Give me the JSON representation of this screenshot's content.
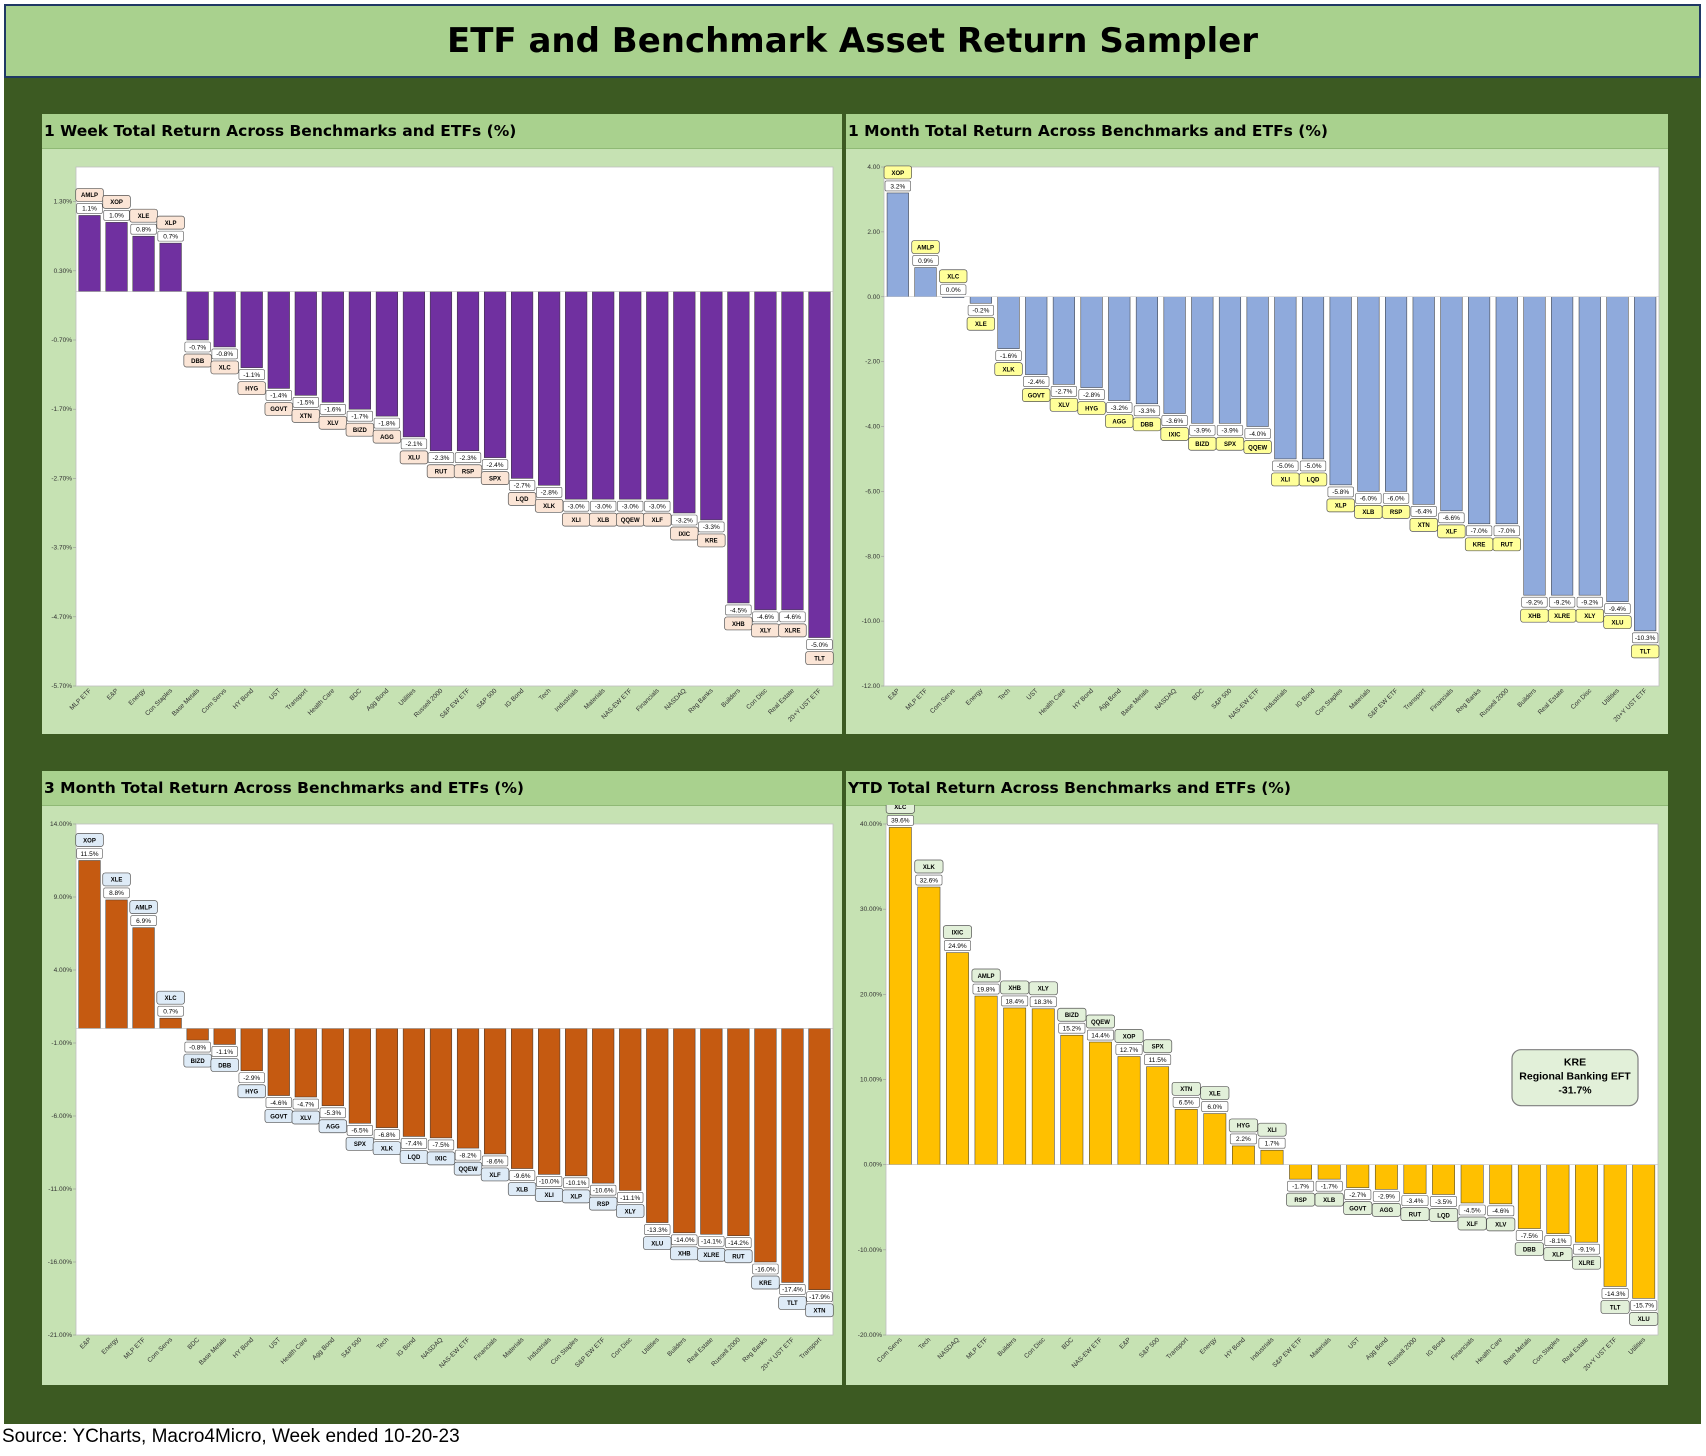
{
  "page": {
    "title": "ETF and Benchmark Asset Return Sampler",
    "source": "Source: YCharts, Macro4Micro, Week ended 10-20-23"
  },
  "chart_data": [
    {
      "id": "w1",
      "type": "bar",
      "title": "1 Week Total Return Across Benchmarks and ETFs (%)",
      "color": "#7030a0",
      "label_fill": "#fbe5d6",
      "ylim": [
        -5.7,
        1.8
      ],
      "yticks": [
        1.3,
        0.3,
        -0.7,
        -1.7,
        -2.7,
        -3.7,
        -4.7,
        -5.7
      ],
      "ytick_labels": [
        "1.30%",
        "0.30%",
        "-0.70%",
        "-1.70%",
        "-2.70%",
        "-3.70%",
        "-4.70%",
        "-5.70%"
      ],
      "categories": [
        "MLP ETF",
        "E&P",
        "Energy",
        "Con Staples",
        "Base Metals",
        "Com Servs",
        "HY Bond",
        "UST",
        "Transport",
        "Health Care",
        "BDC",
        "Agg Bond",
        "Utilities",
        "Russell 2000",
        "S&P EW ETF",
        "S&P 500",
        "IG Bond",
        "Tech",
        "Industrials",
        "Materials",
        "NAS-EW ETF",
        "Financials",
        "NASDAQ",
        "Reg Banks",
        "Builders",
        "Con Disc",
        "Real Estate",
        "20+Y UST ETF"
      ],
      "tickers": [
        "AMLP",
        "XOP",
        "XLE",
        "XLP",
        "DBB",
        "XLC",
        "HYG",
        "GOVT",
        "XTN",
        "XLV",
        "BIZD",
        "AGG",
        "XLU",
        "RUT",
        "RSP",
        "SPX",
        "LQD",
        "XLK",
        "XLI",
        "XLB",
        "QQEW",
        "XLF",
        "IXIC",
        "KRE",
        "XHB",
        "XLY",
        "XLRE",
        "TLT"
      ],
      "values": [
        1.1,
        1.0,
        0.8,
        0.7,
        -0.7,
        -0.8,
        -1.1,
        -1.4,
        -1.5,
        -1.6,
        -1.7,
        -1.8,
        -2.1,
        -2.3,
        -2.3,
        -2.4,
        -2.7,
        -2.8,
        -3.0,
        -3.0,
        -3.0,
        -3.0,
        -3.2,
        -3.3,
        -4.5,
        -4.6,
        -4.6,
        -5.0
      ],
      "value_labels": [
        "1.1%",
        "1.0%",
        "0.8%",
        "0.7%",
        "-0.7%",
        "-0.8%",
        "-1.1%",
        "-1.4%",
        "-1.5%",
        "-1.6%",
        "-1.7%",
        "-1.8%",
        "-2.1%",
        "-2.3%",
        "-2.3%",
        "-2.4%",
        "-2.7%",
        "-2.8%",
        "-3.0%",
        "-3.0%",
        "-3.0%",
        "-3.0%",
        "-3.2%",
        "-3.3%",
        "-4.5%",
        "-4.6%",
        "-4.6%",
        "-5.0%"
      ]
    },
    {
      "id": "m1",
      "type": "bar",
      "title": "1 Month Total Return Across Benchmarks and ETFs (%)",
      "color": "#8faadc",
      "label_fill": "#ffff99",
      "ylim": [
        -12.0,
        4.0
      ],
      "yticks": [
        4,
        2,
        0,
        -2,
        -4,
        -6,
        -8,
        -10,
        -12
      ],
      "ytick_labels": [
        "4.00",
        "2.00",
        "0.00",
        "-2.00",
        "-4.00",
        "-6.00",
        "-8.00",
        "-10.00",
        "-12.00"
      ],
      "categories": [
        "E&P",
        "MLP ETF",
        "Com Servs",
        "Energy",
        "Tech",
        "UST",
        "Health Care",
        "HY Bond",
        "Agg Bond",
        "Base Metals",
        "NASDAQ",
        "BDC",
        "S&P 500",
        "NAS-EW ETF",
        "Industrials",
        "IG Bond",
        "Con Staples",
        "Materials",
        "S&P EW ETF",
        "Transport",
        "Financials",
        "Reg Banks",
        "Russell 2000",
        "Builders",
        "Real Estate",
        "Con Disc",
        "Utilities",
        "20+Y UST ETF"
      ],
      "tickers": [
        "XOP",
        "AMLP",
        "XLC",
        "XLE",
        "XLK",
        "GOVT",
        "XLV",
        "HYG",
        "AGG",
        "DBB",
        "IXIC",
        "BIZD",
        "SPX",
        "QQEW",
        "XLI",
        "LQD",
        "XLP",
        "XLB",
        "RSP",
        "XTN",
        "XLF",
        "KRE",
        "RUT",
        "XHB",
        "XLRE",
        "XLY",
        "XLU",
        "TLT"
      ],
      "values": [
        3.2,
        0.9,
        0.0,
        -0.2,
        -1.6,
        -2.4,
        -2.7,
        -2.8,
        -3.2,
        -3.3,
        -3.6,
        -3.9,
        -3.9,
        -4.0,
        -5.0,
        -5.0,
        -5.8,
        -6.0,
        -6.0,
        -6.4,
        -6.6,
        -7.0,
        -7.0,
        -9.2,
        -9.2,
        -9.2,
        -9.4,
        -10.3
      ],
      "value_labels": [
        "3.2%",
        "0.9%",
        "0.0%",
        "-0.2%",
        "-1.6%",
        "-2.4%",
        "-2.7%",
        "-2.8%",
        "-3.2%",
        "-3.3%",
        "-3.6%",
        "-3.9%",
        "-3.9%",
        "-4.0%",
        "-5.0%",
        "-5.0%",
        "-5.8%",
        "-6.0%",
        "-6.0%",
        "-6.4%",
        "-6.6%",
        "-7.0%",
        "-7.0%",
        "-9.2%",
        "-9.2%",
        "-9.2%",
        "-9.4%",
        "-10.3%"
      ]
    },
    {
      "id": "m3",
      "type": "bar",
      "title": "3 Month Total Return Across Benchmarks and ETFs (%)",
      "color": "#c55a11",
      "label_fill": "#deebf7",
      "ylim": [
        -21.0,
        14.0
      ],
      "yticks": [
        14,
        9,
        4,
        -1,
        -6,
        -11,
        -16,
        -21
      ],
      "ytick_labels": [
        "14.00%",
        "9.00%",
        "4.00%",
        "-1.00%",
        "-6.00%",
        "-11.00%",
        "-16.00%",
        "-21.00%"
      ],
      "categories": [
        "E&P",
        "Energy",
        "MLP ETF",
        "Com Servs",
        "BDC",
        "Base Metals",
        "HY Bond",
        "UST",
        "Health Care",
        "Agg Bond",
        "S&P 500",
        "Tech",
        "IG Bond",
        "NASDAQ",
        "NAS-EW ETF",
        "Financials",
        "Materials",
        "Industrials",
        "Con Staples",
        "S&P EW ETF",
        "Con Disc",
        "Utilities",
        "Builders",
        "Real Estate",
        "Russell 2000",
        "Reg Banks",
        "20+Y UST ETF",
        "Transport"
      ],
      "tickers": [
        "XOP",
        "XLE",
        "AMLP",
        "XLC",
        "BIZD",
        "DBB",
        "HYG",
        "GOVT",
        "XLV",
        "AGG",
        "SPX",
        "XLK",
        "LQD",
        "IXIC",
        "QQEW",
        "XLF",
        "XLB",
        "XLI",
        "XLP",
        "RSP",
        "XLY",
        "XLU",
        "XHB",
        "XLRE",
        "RUT",
        "KRE",
        "TLT",
        "XTN"
      ],
      "values": [
        11.5,
        8.8,
        6.9,
        0.7,
        -0.8,
        -1.1,
        -2.9,
        -4.6,
        -4.7,
        -5.3,
        -6.5,
        -6.8,
        -7.4,
        -7.5,
        -8.2,
        -8.6,
        -9.6,
        -10.0,
        -10.1,
        -10.6,
        -11.1,
        -13.3,
        -14.0,
        -14.1,
        -14.2,
        -16.0,
        -17.4,
        -17.9
      ],
      "value_labels": [
        "11.5%",
        "8.8%",
        "6.9%",
        "0.7%",
        "-0.8%",
        "-1.1%",
        "-2.9%",
        "-4.6%",
        "-4.7%",
        "-5.3%",
        "-6.5%",
        "-6.8%",
        "-7.4%",
        "-7.5%",
        "-8.2%",
        "-8.6%",
        "-9.6%",
        "-10.0%",
        "-10.1%",
        "-10.6%",
        "-11.1%",
        "-13.3%",
        "-14.0%",
        "-14.1%",
        "-14.2%",
        "-16.0%",
        "-17.4%",
        "-17.9%"
      ]
    },
    {
      "id": "ytd",
      "type": "bar",
      "title": "YTD Total Return Across Benchmarks and ETFs (%)",
      "color": "#ffc000",
      "label_fill": "#e2f0d9",
      "ylim": [
        -20.0,
        40.0
      ],
      "yticks": [
        40,
        30,
        20,
        10,
        0,
        -10,
        -20
      ],
      "ytick_labels": [
        "40.00%",
        "30.00%",
        "20.00%",
        "10.00%",
        "0.00%",
        "-10.00%",
        "-20.00%"
      ],
      "categories": [
        "Com Servs",
        "Tech",
        "NASDAQ",
        "MLP ETF",
        "Builders",
        "Con Disc",
        "BDC",
        "NAS-EW ETF",
        "E&P",
        "S&P 500",
        "Transport",
        "Energy",
        "HY Bond",
        "Industrials",
        "S&P EW ETF",
        "Materials",
        "UST",
        "Agg Bond",
        "Russell 2000",
        "IG Bond",
        "Financials",
        "Health Care",
        "Base Metals",
        "Con Staples",
        "Real Estate",
        "20+Y UST ETF",
        "Utilities"
      ],
      "tickers": [
        "XLC",
        "XLK",
        "IXIC",
        "AMLP",
        "XHB",
        "XLY",
        "BIZD",
        "QQEW",
        "XOP",
        "SPX",
        "XTN",
        "XLE",
        "HYG",
        "XLI",
        "RSP",
        "XLB",
        "GOVT",
        "AGG",
        "RUT",
        "LQD",
        "XLF",
        "XLV",
        "DBB",
        "XLP",
        "XLRE",
        "TLT",
        "XLU"
      ],
      "values": [
        39.6,
        32.6,
        24.9,
        19.8,
        18.4,
        18.3,
        15.2,
        14.4,
        12.7,
        11.5,
        6.5,
        6.0,
        2.2,
        1.7,
        -1.7,
        -1.7,
        -2.7,
        -2.9,
        -3.4,
        -3.5,
        -4.5,
        -4.6,
        -7.5,
        -8.1,
        -9.1,
        -14.3,
        -15.7
      ],
      "value_labels": [
        "39.6%",
        "32.6%",
        "24.9%",
        "19.8%",
        "18.4%",
        "18.3%",
        "15.2%",
        "14.4%",
        "12.7%",
        "11.5%",
        "6.5%",
        "6.0%",
        "2.2%",
        "1.7%",
        "-1.7%",
        "-1.7%",
        "-2.7%",
        "-2.9%",
        "-3.4%",
        "-3.5%",
        "-4.5%",
        "-4.6%",
        "-7.5%",
        "-8.1%",
        "-9.1%",
        "-14.3%",
        "-15.7%"
      ],
      "annotation": {
        "line1": "KRE",
        "line2": "Regional Banking EFT",
        "line3": "-31.7%"
      }
    }
  ]
}
